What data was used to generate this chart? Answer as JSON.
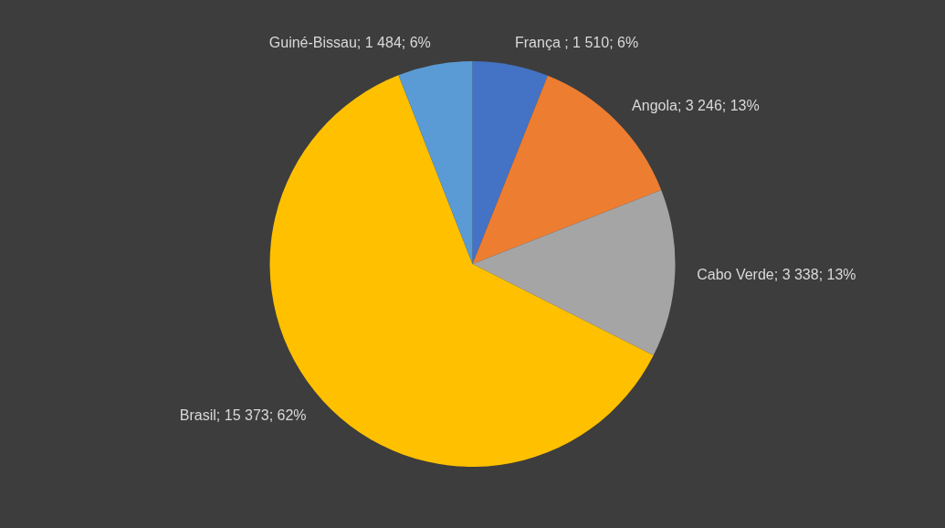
{
  "chart_data": {
    "type": "pie",
    "categories": [
      "França ",
      "Angola",
      "Cabo Verde",
      "Brasil",
      "Guiné-Bissau"
    ],
    "values": [
      1510,
      3246,
      3338,
      15373,
      1484
    ],
    "colors": [
      "#4472c4",
      "#ed7d31",
      "#a5a5a5",
      "#ffc000",
      "#5b9bd5"
    ],
    "value_labels": [
      "1 510; 6%",
      "3 246; 13%",
      "3 338; 13%",
      "15 373; 62%",
      "1 484; 6%"
    ]
  }
}
